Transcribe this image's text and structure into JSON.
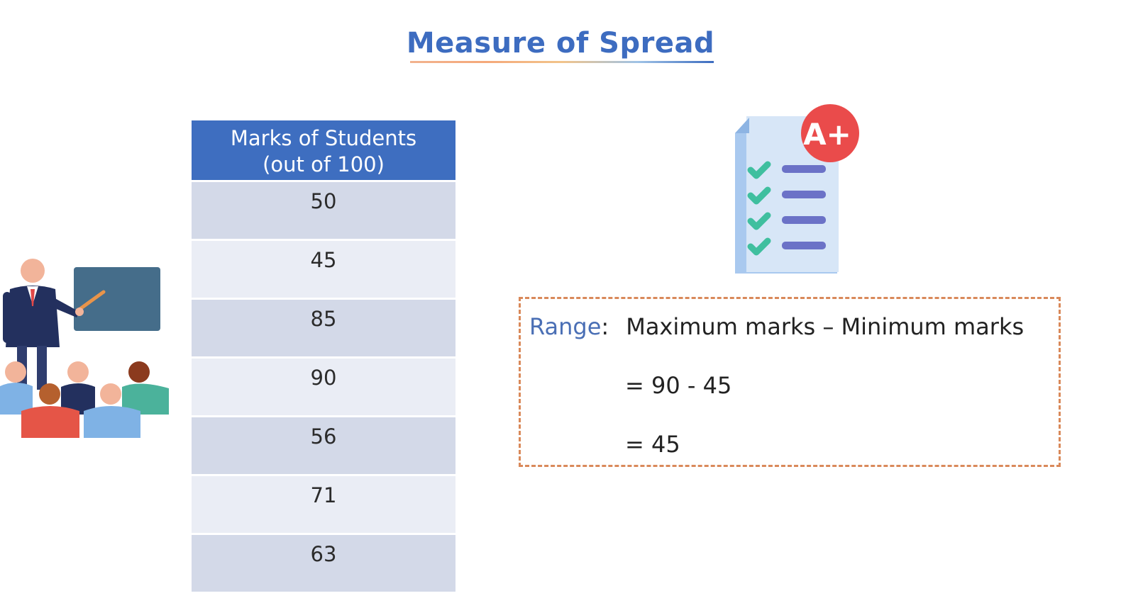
{
  "title": "Measure of Spread",
  "table": {
    "header_line1": "Marks of Students",
    "header_line2": "(out of 100)",
    "rows": [
      "50",
      "45",
      "85",
      "90",
      "56",
      "71",
      "63"
    ]
  },
  "formula": {
    "range_label": "Range",
    "colon": ":",
    "definition": "Maximum marks – Minimum marks",
    "step1": "= 90 - 45",
    "step2": "= 45"
  },
  "report_badge": "A+",
  "icons": [
    "teacher-classroom-illustration",
    "report-card-icon",
    "grade-a-plus-badge",
    "check-icon"
  ],
  "colors": {
    "title": "#3d6cc0",
    "table_header": "#3e6ec0",
    "row_dark": "#d3d9e8",
    "row_light": "#eaedf5",
    "dashed_border": "#d9895a",
    "range_label": "#4a6fb5",
    "badge": "#ea4b4b",
    "checkmark": "#3fbf9f"
  }
}
